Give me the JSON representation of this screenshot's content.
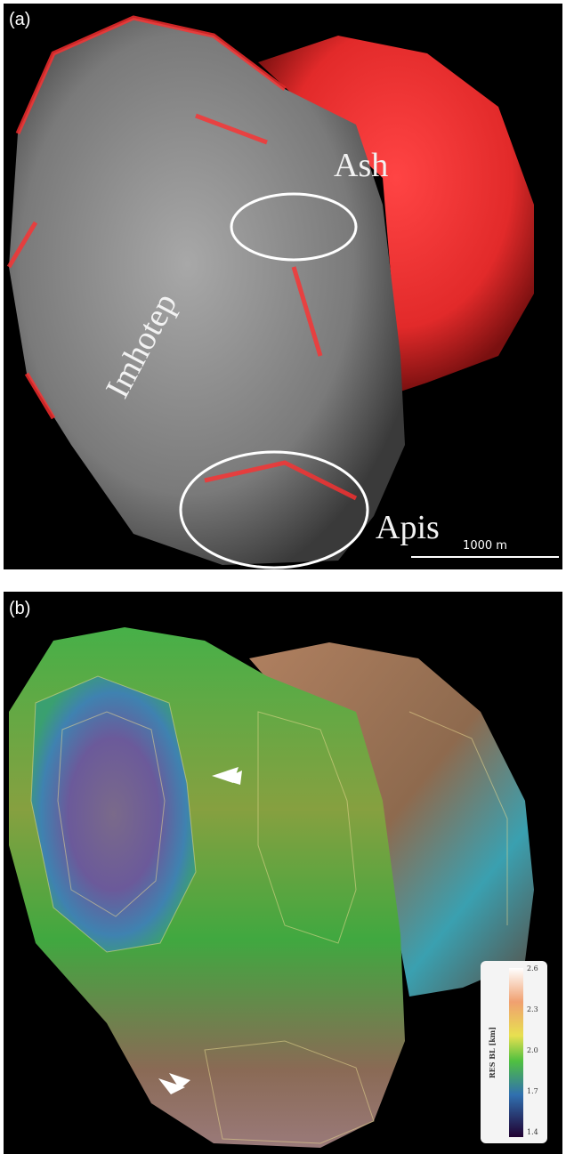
{
  "panels": [
    {
      "label": "(a)",
      "regions": [
        "Ash",
        "Imhotep",
        "Apis"
      ],
      "scale_bar": "1000 m"
    },
    {
      "label": "(b)",
      "colorbar": {
        "title": "RES BL [km]",
        "ticks": [
          "2.6",
          "2.3",
          "2.0",
          "1.7",
          "1.4"
        ]
      }
    }
  ]
}
